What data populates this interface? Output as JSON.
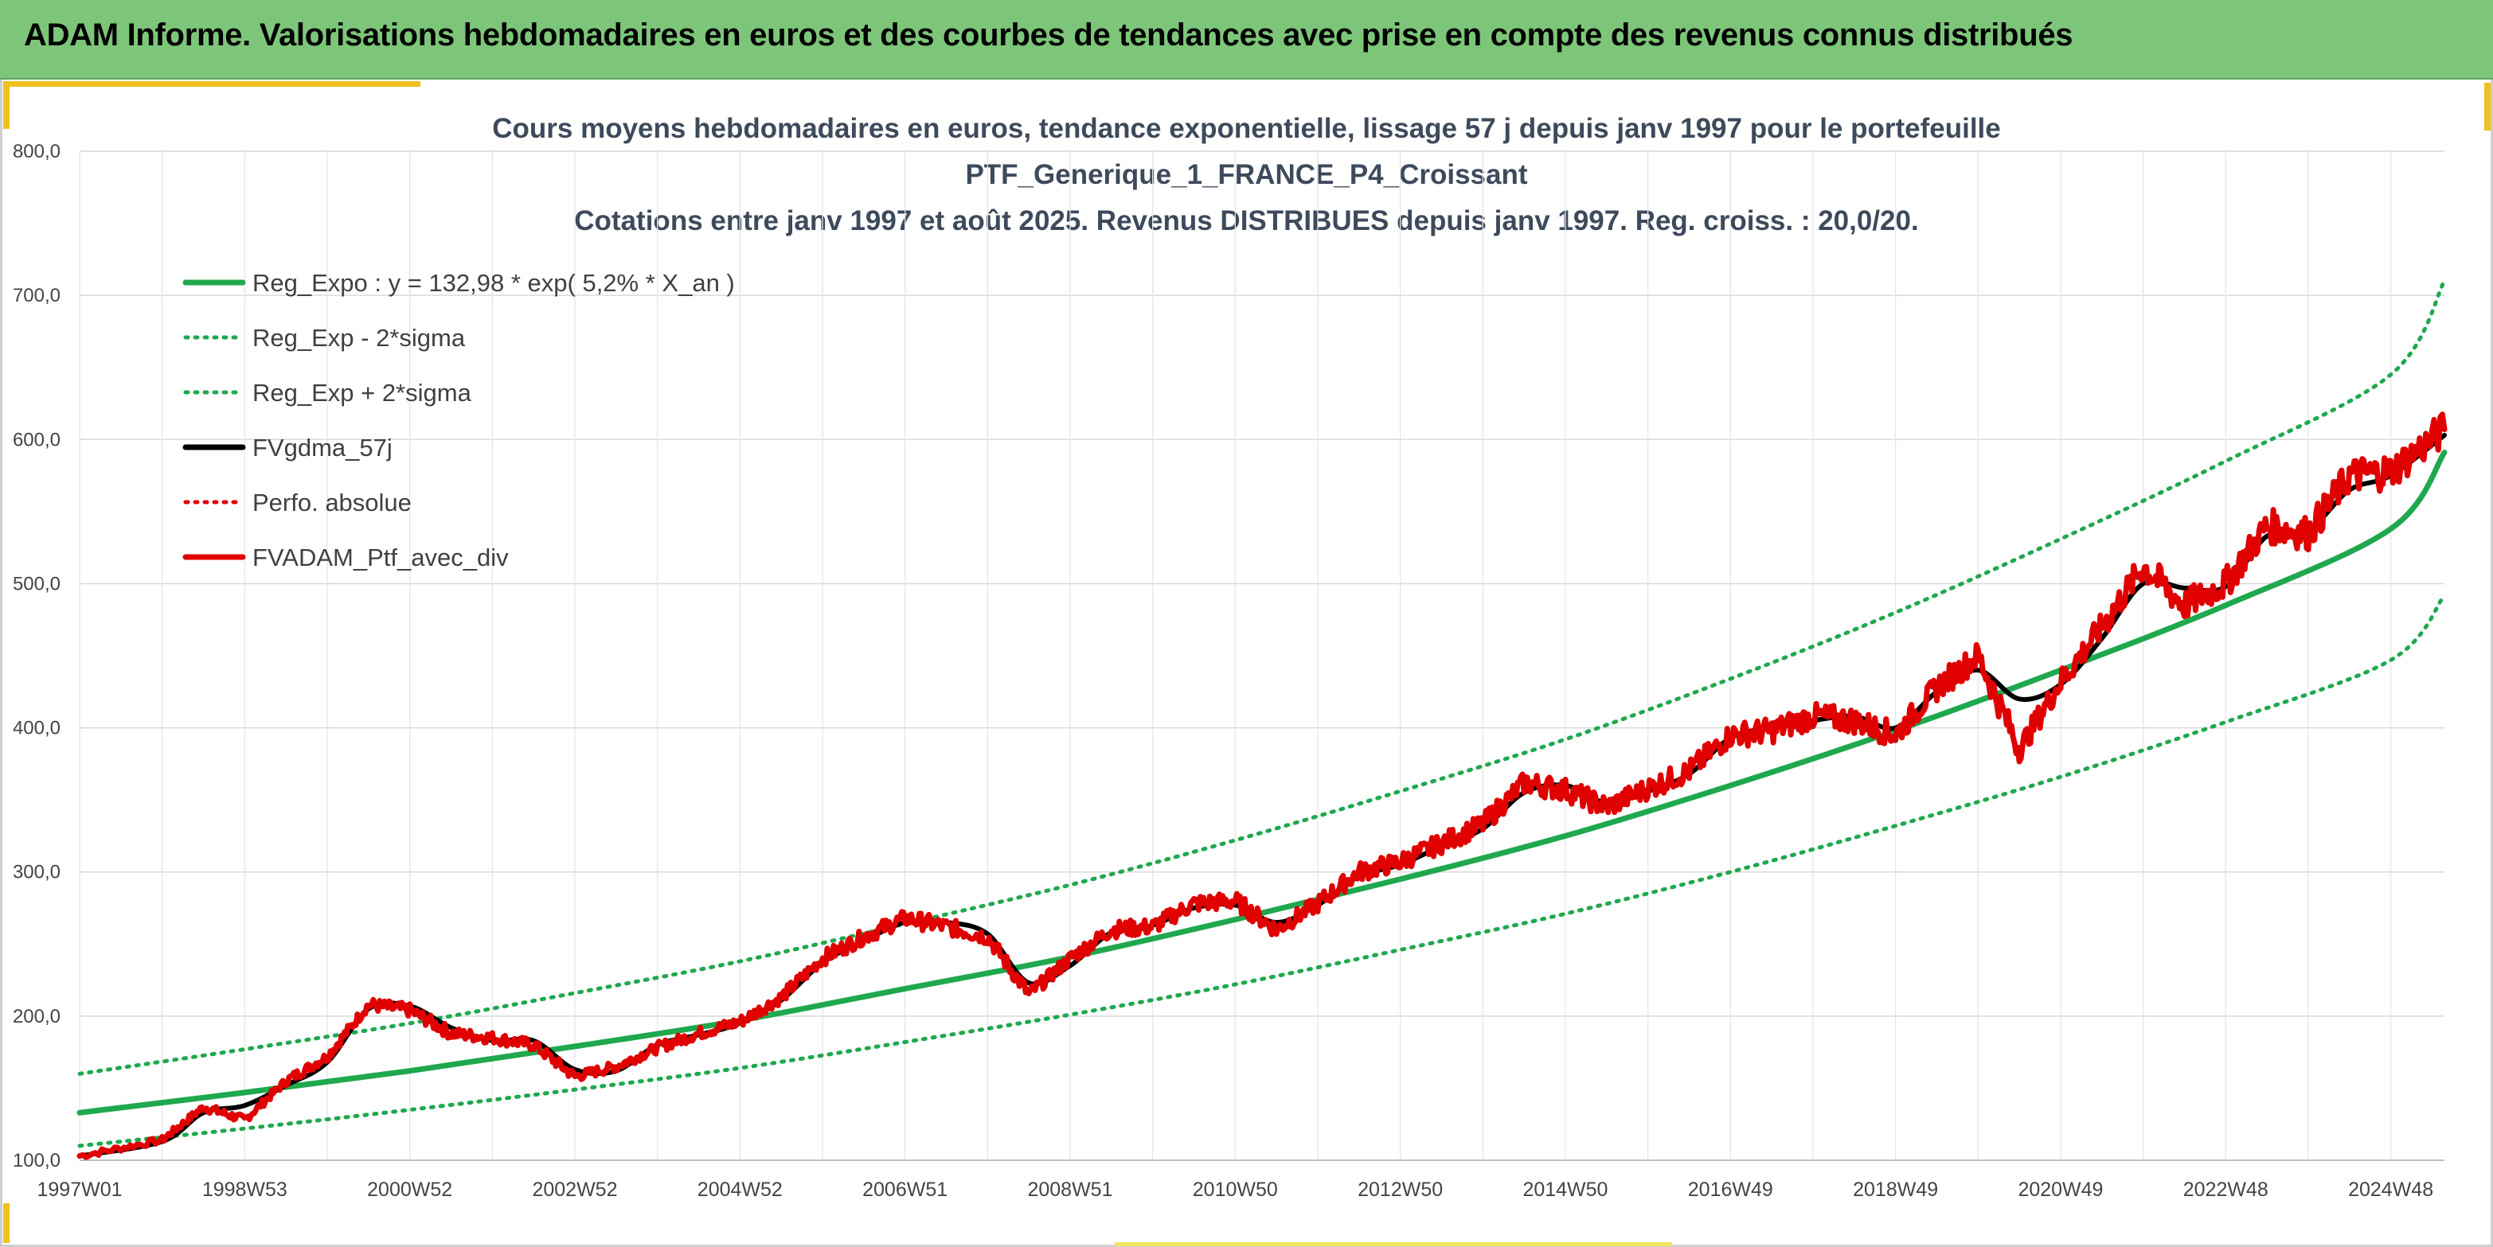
{
  "banner": {
    "title": "ADAM Informe. Valorisations hebdomadaires en euros et des courbes de tendances avec prise en compte des revenus connus distribués"
  },
  "chart_data": {
    "type": "line",
    "title_lines": [
      "Cours moyens hebdomadaires en euros, tendance exponentielle, lissage 57 j depuis janv 1997 pour le portefeuille",
      "PTF_Generique_1_FRANCE_P4_Croissant",
      "Cotations entre janv 1997 et août 2025. Revenus DISTRIBUES depuis janv 1997. Reg. croiss. : 20,0/20."
    ],
    "xlabel": "",
    "ylabel": "",
    "ylim": [
      100,
      800
    ],
    "xlim": [
      1997.0,
      2025.65
    ],
    "y_ticks": [
      "100,0",
      "200,0",
      "300,0",
      "400,0",
      "500,0",
      "600,0",
      "700,0",
      "800,0"
    ],
    "x_ticks": [
      {
        "label": "1997W01",
        "t": 1997.0
      },
      {
        "label": "1998W53",
        "t": 1999.0
      },
      {
        "label": "2000W52",
        "t": 2001.0
      },
      {
        "label": "2002W52",
        "t": 2003.0
      },
      {
        "label": "2004W52",
        "t": 2005.0
      },
      {
        "label": "2006W51",
        "t": 2007.0
      },
      {
        "label": "2008W51",
        "t": 2009.0
      },
      {
        "label": "2010W50",
        "t": 2011.0
      },
      {
        "label": "2012W50",
        "t": 2013.0
      },
      {
        "label": "2014W50",
        "t": 2015.0
      },
      {
        "label": "2016W49",
        "t": 2017.0
      },
      {
        "label": "2018W49",
        "t": 2019.0
      },
      {
        "label": "2020W49",
        "t": 2021.0
      },
      {
        "label": "2022W48",
        "t": 2023.0
      },
      {
        "label": "2024W48",
        "t": 2025.0
      }
    ],
    "grid": true,
    "legend_position": "top-left",
    "series": [
      {
        "name": "Reg_Expo : y = 132,98 * exp( 5,2% *  X_an )",
        "color": "#1fa84e",
        "style": "solid",
        "x": [
          1997.0,
          1999.0,
          2001.0,
          2003.0,
          2005.0,
          2007.0,
          2009.0,
          2011.0,
          2013.0,
          2015.0,
          2017.0,
          2019.0,
          2021.0,
          2023.0,
          2025.0,
          2025.65
        ],
        "y": [
          133,
          147,
          162,
          179,
          197,
          219,
          241,
          267,
          295,
          325,
          360,
          398,
          440,
          485,
          538,
          591
        ]
      },
      {
        "name": "Reg_Exp - 2*sigma",
        "color": "#1fa84e",
        "style": "dotted",
        "x": [
          1997.0,
          1999.0,
          2001.0,
          2003.0,
          2005.0,
          2007.0,
          2009.0,
          2011.0,
          2013.0,
          2015.0,
          2017.0,
          2019.0,
          2021.0,
          2023.0,
          2025.0,
          2025.65
        ],
        "y": [
          110,
          122,
          135,
          149,
          164,
          182,
          201,
          222,
          246,
          271,
          300,
          332,
          366,
          404,
          447,
          492
        ]
      },
      {
        "name": "Reg_Exp + 2*sigma",
        "color": "#1fa84e",
        "style": "dotted",
        "x": [
          1997.0,
          1999.0,
          2001.0,
          2003.0,
          2005.0,
          2007.0,
          2009.0,
          2011.0,
          2013.0,
          2015.0,
          2017.0,
          2019.0,
          2021.0,
          2023.0,
          2025.0,
          2025.65
        ],
        "y": [
          160,
          177,
          195,
          216,
          238,
          264,
          291,
          322,
          356,
          392,
          434,
          480,
          531,
          585,
          645,
          710
        ]
      },
      {
        "name": "FVgdma_57j",
        "color": "#000000",
        "style": "solid",
        "x": [
          1997.0,
          1998.0,
          1998.5,
          1999.0,
          1999.5,
          2000.0,
          2000.5,
          2001.0,
          2001.5,
          2002.0,
          2002.5,
          2003.0,
          2003.5,
          2004.0,
          2004.5,
          2005.0,
          2005.5,
          2006.0,
          2006.5,
          2007.0,
          2007.5,
          2008.0,
          2008.5,
          2009.0,
          2009.5,
          2010.0,
          2010.5,
          2011.0,
          2011.5,
          2012.0,
          2012.5,
          2013.0,
          2013.5,
          2014.0,
          2014.5,
          2015.0,
          2015.5,
          2016.0,
          2016.5,
          2017.0,
          2017.5,
          2018.0,
          2018.5,
          2019.0,
          2019.5,
          2020.0,
          2020.5,
          2021.0,
          2021.5,
          2022.0,
          2022.5,
          2023.0,
          2023.5,
          2024.0,
          2024.5,
          2025.0,
          2025.65
        ],
        "y": [
          103,
          113,
          133,
          138,
          152,
          168,
          205,
          207,
          192,
          183,
          183,
          163,
          162,
          180,
          187,
          195,
          211,
          237,
          252,
          265,
          265,
          257,
          223,
          235,
          258,
          263,
          275,
          277,
          265,
          277,
          297,
          305,
          318,
          330,
          355,
          360,
          348,
          356,
          368,
          393,
          400,
          405,
          408,
          400,
          425,
          440,
          420,
          430,
          462,
          500,
          497,
          498,
          533,
          537,
          565,
          575,
          603
        ]
      },
      {
        "name": "Perfo. absolue",
        "color": "#e00000",
        "style": "dotted",
        "x": [
          1997.0,
          1998.0,
          1998.5,
          1999.0,
          1999.5,
          2000.0,
          2000.5,
          2001.0,
          2001.5,
          2002.0,
          2002.5,
          2003.0,
          2003.5,
          2004.0,
          2004.5,
          2005.0,
          2005.5,
          2006.0,
          2006.5,
          2007.0,
          2007.5,
          2008.0,
          2008.5,
          2009.0,
          2009.5,
          2010.0,
          2010.5,
          2011.0,
          2011.5,
          2012.0,
          2012.5,
          2013.0,
          2013.5,
          2014.0,
          2014.5,
          2015.0,
          2015.5,
          2016.0,
          2016.5,
          2017.0,
          2017.5,
          2018.0,
          2018.5,
          2019.0,
          2019.5,
          2020.0,
          2020.5,
          2021.0,
          2021.5,
          2022.0,
          2022.5,
          2023.0,
          2023.5,
          2024.0,
          2024.5,
          2025.0,
          2025.65
        ],
        "y": [
          103,
          114,
          137,
          128,
          155,
          172,
          208,
          204,
          188,
          185,
          180,
          158,
          165,
          178,
          188,
          196,
          213,
          240,
          255,
          268,
          262,
          255,
          215,
          240,
          260,
          262,
          278,
          280,
          260,
          278,
          300,
          307,
          320,
          333,
          362,
          357,
          345,
          358,
          370,
          395,
          398,
          408,
          405,
          395,
          428,
          450,
          385,
          432,
          470,
          512,
          485,
          500,
          540,
          535,
          575,
          578,
          607
        ]
      },
      {
        "name": "FVADAM_Ptf_avec_div",
        "color": "#e00000",
        "style": "solid-thick",
        "x": [
          1997.0,
          1998.0,
          1998.5,
          1999.0,
          1999.5,
          2000.0,
          2000.5,
          2001.0,
          2001.5,
          2002.0,
          2002.5,
          2003.0,
          2003.5,
          2004.0,
          2004.5,
          2005.0,
          2005.5,
          2006.0,
          2006.5,
          2007.0,
          2007.5,
          2008.0,
          2008.5,
          2009.0,
          2009.5,
          2010.0,
          2010.5,
          2011.0,
          2011.5,
          2012.0,
          2012.5,
          2013.0,
          2013.5,
          2014.0,
          2014.5,
          2015.0,
          2015.5,
          2016.0,
          2016.5,
          2017.0,
          2017.5,
          2018.0,
          2018.5,
          2019.0,
          2019.5,
          2020.0,
          2020.5,
          2021.0,
          2021.5,
          2022.0,
          2022.5,
          2023.0,
          2023.5,
          2024.0,
          2024.5,
          2025.0,
          2025.65
        ],
        "y": [
          103,
          114,
          137,
          128,
          155,
          172,
          208,
          204,
          188,
          185,
          180,
          158,
          165,
          178,
          188,
          196,
          213,
          240,
          255,
          268,
          262,
          255,
          215,
          240,
          260,
          262,
          278,
          280,
          260,
          278,
          300,
          307,
          320,
          333,
          362,
          357,
          345,
          358,
          370,
          395,
          398,
          408,
          405,
          395,
          428,
          450,
          385,
          432,
          470,
          512,
          485,
          500,
          540,
          535,
          575,
          578,
          607
        ]
      }
    ]
  }
}
